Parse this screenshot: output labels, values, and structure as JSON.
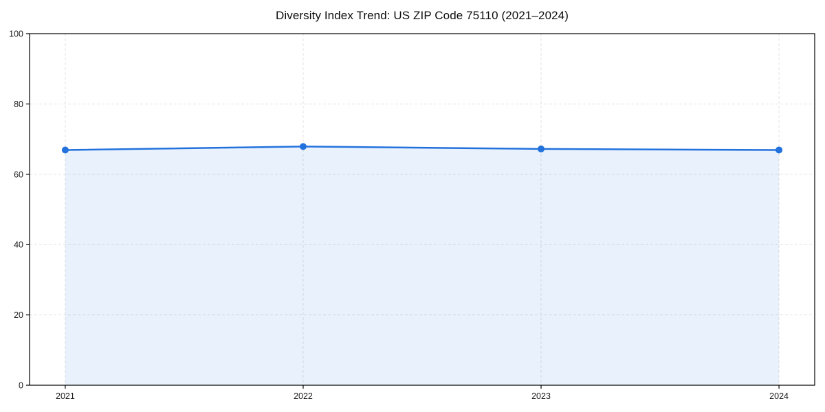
{
  "page": {
    "background_color": "#ffffff"
  },
  "chart_data": {
    "type": "area",
    "title": "Diversity Index Trend: US ZIP Code 75110 (2021–2024)",
    "x": [
      2021,
      2022,
      2023,
      2024
    ],
    "xtick_labels": [
      "2021",
      "2022",
      "2023",
      "2024"
    ],
    "values": [
      66.9,
      67.9,
      67.2,
      66.9
    ],
    "ylim": [
      0,
      100
    ],
    "yticks": [
      0,
      20,
      40,
      60,
      80,
      100
    ],
    "ytick_labels": [
      "0",
      "20",
      "40",
      "60",
      "80",
      "100"
    ],
    "xlabel": "",
    "ylabel": "",
    "grid": true,
    "grid_style": "dashed",
    "legend": "none",
    "line_color": "#2272dd",
    "marker_color": "#2272dd",
    "fill_color": "#2272dd",
    "fill_opacity": 0.1,
    "axis_color": "#000000",
    "grid_color": "#e2e2e2",
    "tick_label_color": "#1a1a1a",
    "title_color": "#0d0d0d"
  }
}
